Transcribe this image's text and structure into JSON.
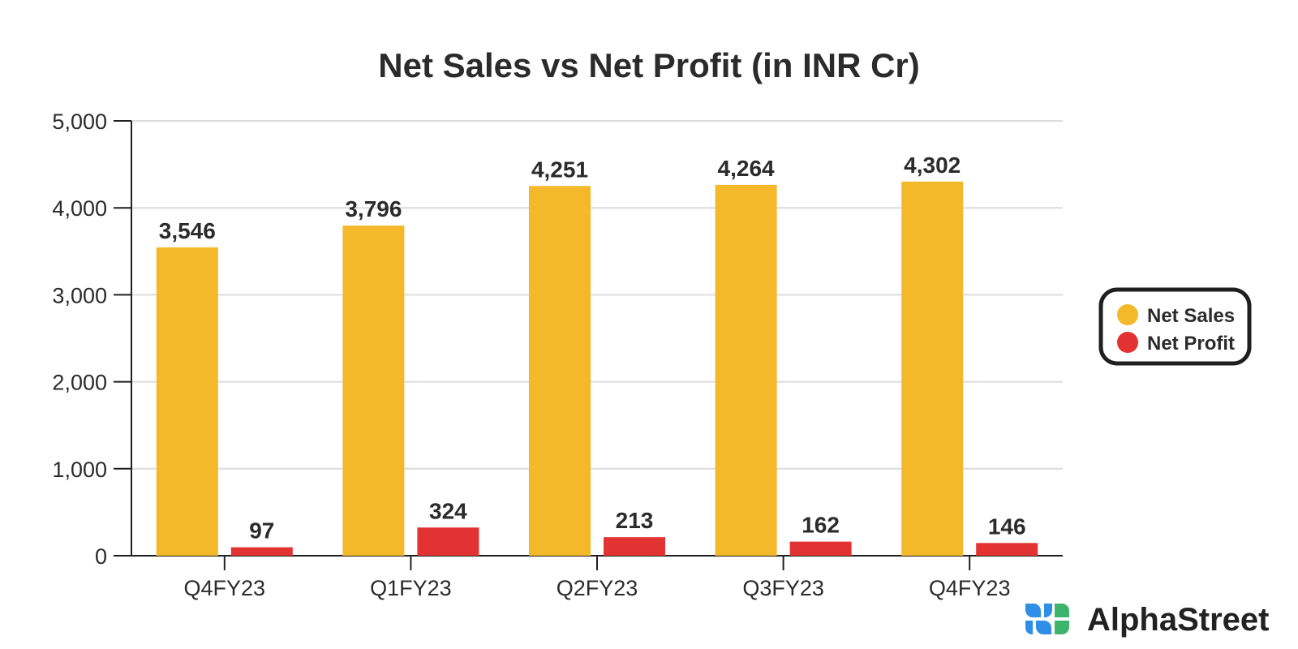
{
  "chart_data": {
    "type": "bar",
    "title": "Net Sales vs Net Profit (in INR Cr)",
    "categories": [
      "Q4FY23",
      "Q1FY23",
      "Q2FY23",
      "Q3FY23",
      "Q4FY23"
    ],
    "series": [
      {
        "name": "Net Sales",
        "color": "#F4B82B",
        "values": [
          3546,
          3796,
          4251,
          4264,
          4302
        ],
        "labels": [
          "3,546",
          "3,796",
          "4,251",
          "4,264",
          "4,302"
        ]
      },
      {
        "name": "Net Profit",
        "color": "#E23232",
        "values": [
          97,
          324,
          213,
          162,
          146
        ],
        "labels": [
          "97",
          "324",
          "213",
          "162",
          "146"
        ]
      }
    ],
    "ylim": [
      0,
      5000
    ],
    "yticks": [
      0,
      1000,
      2000,
      3000,
      4000,
      5000
    ],
    "ytick_labels": [
      "0",
      "1,000",
      "2,000",
      "3,000",
      "4,000",
      "5,000"
    ],
    "xlabel": "",
    "ylabel": "",
    "grid": true,
    "legend_position": "right"
  },
  "brand": {
    "name": "AlphaStreet",
    "logo_icon": "alphastreet-logo-icon",
    "logo_colors": [
      "#2F8FE6",
      "#3DB36B"
    ]
  }
}
